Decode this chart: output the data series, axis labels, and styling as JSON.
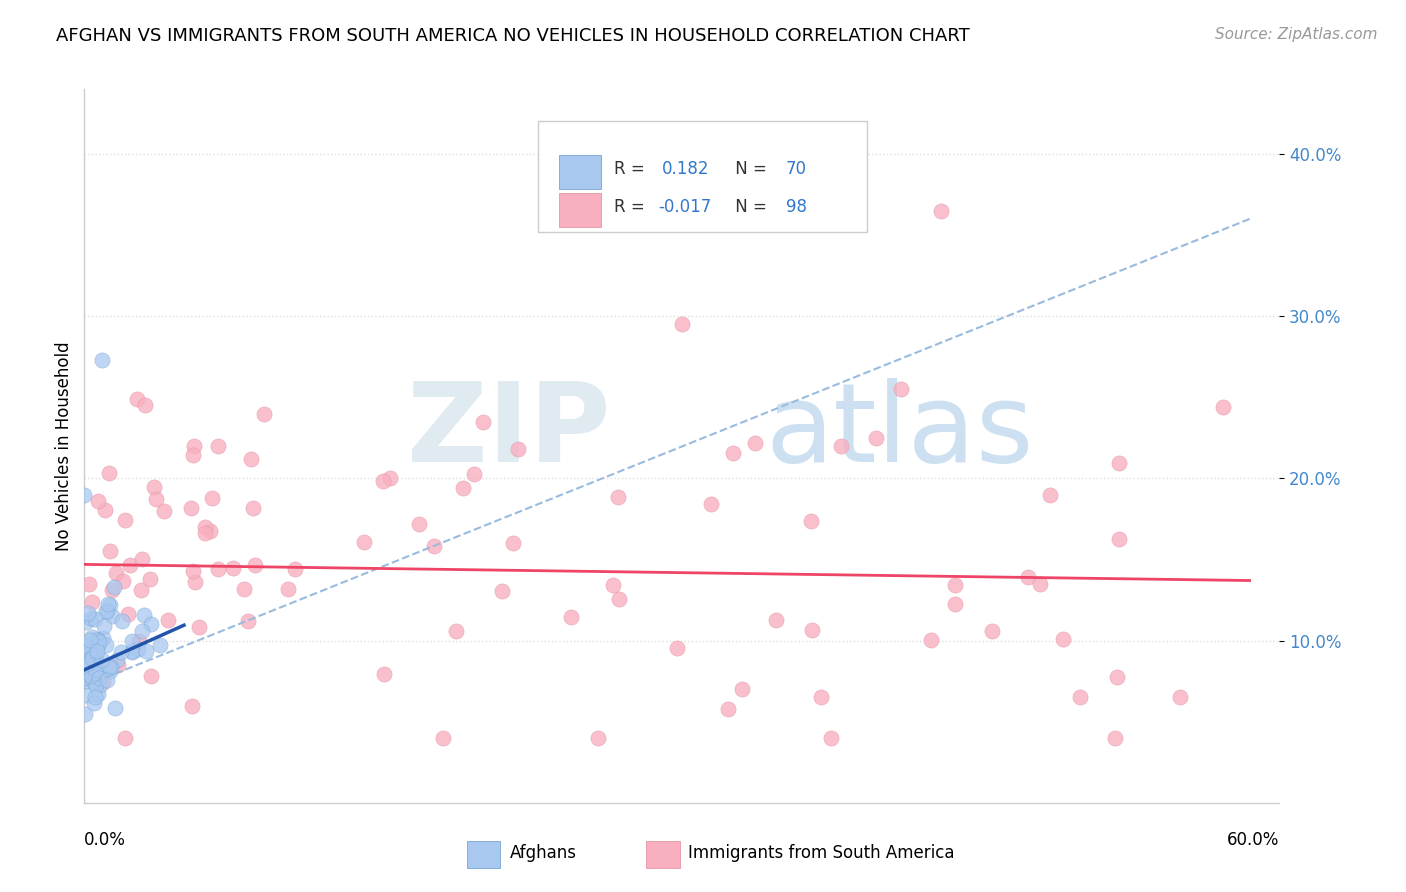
{
  "title": "AFGHAN VS IMMIGRANTS FROM SOUTH AMERICA NO VEHICLES IN HOUSEHOLD CORRELATION CHART",
  "source": "Source: ZipAtlas.com",
  "ylabel": "No Vehicles in Household",
  "xlim": [
    0.0,
    0.6
  ],
  "ylim": [
    0.0,
    0.44
  ],
  "ytick_vals": [
    0.1,
    0.2,
    0.3,
    0.4
  ],
  "ytick_labels": [
    "10.0%",
    "20.0%",
    "30.0%",
    "40.0%"
  ],
  "afghan_color": "#a8c8f0",
  "afghan_edge_color": "#6699cc",
  "south_america_color": "#f8b0c0",
  "south_america_edge_color": "#dd8899",
  "afghan_line_color": "#2255aa",
  "south_america_line_color": "#ee4466",
  "dash_line_color": "#99bbdd",
  "watermark_zip_color": "#dde8f0",
  "watermark_atlas_color": "#c8ddf0",
  "grid_color": "#dddddd",
  "title_fontsize": 13,
  "source_fontsize": 11,
  "tick_fontsize": 12,
  "ylabel_fontsize": 12
}
